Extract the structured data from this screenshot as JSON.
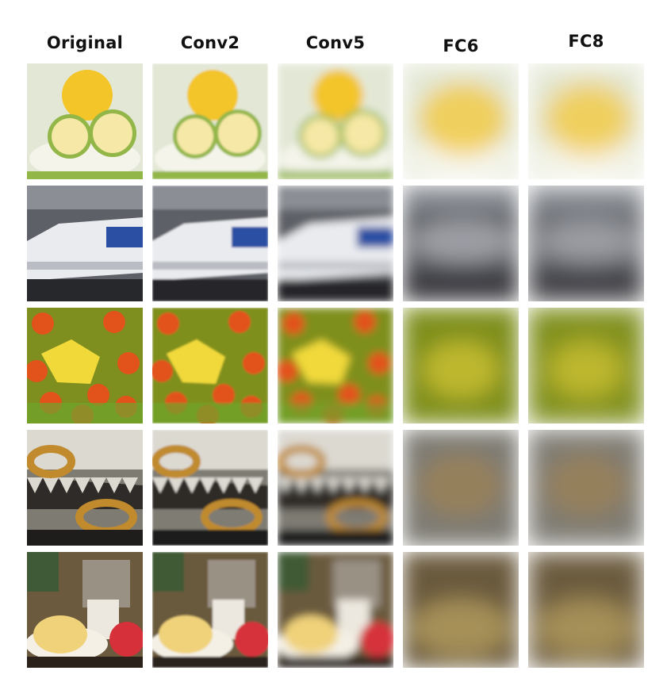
{
  "columns": [
    "Original",
    "Conv2",
    "Conv5",
    "FC6",
    "FC8"
  ],
  "rows": [
    {
      "subject": "lemons",
      "palette": {
        "bg": "#e3e8d6",
        "a": "#f3c529",
        "b": "#93b648",
        "c": "#f6e8a6",
        "dark": "#6b7a3c"
      }
    },
    {
      "subject": "train",
      "palette": {
        "bg": "#5d6066",
        "a": "#e9ebef",
        "b": "#2b4fa3",
        "c": "#b9bcc2",
        "dark": "#26282c"
      }
    },
    {
      "subject": "butterfly",
      "palette": {
        "bg": "#7f8f1f",
        "a": "#f1d93a",
        "b": "#e2531b",
        "c": "#6ea52c",
        "dark": "#3f4f10"
      }
    },
    {
      "subject": "chain",
      "palette": {
        "bg": "#7e7b73",
        "a": "#c08a2d",
        "b": "#2f2b28",
        "c": "#dcd9d1",
        "dark": "#1f1d1b"
      }
    },
    {
      "subject": "food",
      "palette": {
        "bg": "#6b5a3e",
        "a": "#f0d27a",
        "b": "#d6313a",
        "c": "#ece8df",
        "dark": "#2a221a"
      }
    }
  ]
}
